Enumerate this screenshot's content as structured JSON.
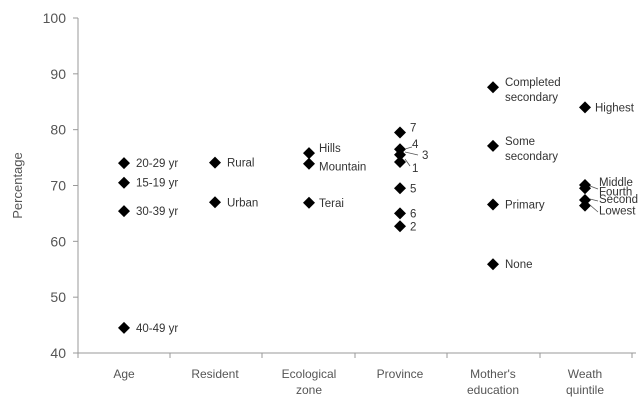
{
  "chart_data": {
    "type": "scatter",
    "title": "",
    "ylabel": "Percentage",
    "xlabel": "",
    "ylim": [
      40,
      100
    ],
    "yticks": [
      40,
      50,
      60,
      70,
      80,
      90,
      100
    ],
    "grid": false,
    "marker": "diamond",
    "categories": [
      {
        "label_lines": [
          "Age"
        ]
      },
      {
        "label_lines": [
          "Resident"
        ]
      },
      {
        "label_lines": [
          "Ecological",
          "zone"
        ]
      },
      {
        "label_lines": [
          "Province"
        ]
      },
      {
        "label_lines": [
          "Mother's",
          "education"
        ]
      },
      {
        "label_lines": [
          "Weath",
          "quintile"
        ]
      }
    ],
    "points": [
      {
        "category": 0,
        "value": 74.0,
        "label_lines": [
          "20-29 yr"
        ]
      },
      {
        "category": 0,
        "value": 70.5,
        "label_lines": [
          "15-19 yr"
        ]
      },
      {
        "category": 0,
        "value": 65.4,
        "label_lines": [
          "30-39 yr"
        ]
      },
      {
        "category": 0,
        "value": 44.5,
        "label_lines": [
          "40-49 yr"
        ]
      },
      {
        "category": 1,
        "value": 74.1,
        "label_lines": [
          "Rural"
        ]
      },
      {
        "category": 1,
        "value": 67.0,
        "label_lines": [
          "Urban"
        ]
      },
      {
        "category": 2,
        "value": 75.8,
        "label_lines": [
          "Hills"
        ]
      },
      {
        "category": 2,
        "value": 73.9,
        "label_lines": [
          "Mountain"
        ]
      },
      {
        "category": 2,
        "value": 66.9,
        "label_lines": [
          "Terai"
        ]
      },
      {
        "category": 3,
        "value": 79.5,
        "label_lines": [
          "7"
        ]
      },
      {
        "category": 3,
        "value": 76.5,
        "label_lines": [
          "4"
        ]
      },
      {
        "category": 3,
        "value": 75.5,
        "label_lines": [
          "3"
        ]
      },
      {
        "category": 3,
        "value": 74.2,
        "label_lines": [
          "1"
        ]
      },
      {
        "category": 3,
        "value": 69.5,
        "label_lines": [
          "5"
        ]
      },
      {
        "category": 3,
        "value": 65.0,
        "label_lines": [
          "6"
        ]
      },
      {
        "category": 3,
        "value": 62.7,
        "label_lines": [
          "2"
        ]
      },
      {
        "category": 4,
        "value": 87.6,
        "label_lines": [
          "Completed",
          "secondary"
        ]
      },
      {
        "category": 4,
        "value": 77.1,
        "label_lines": [
          "Some",
          "secondary"
        ]
      },
      {
        "category": 4,
        "value": 66.6,
        "label_lines": [
          "Primary"
        ]
      },
      {
        "category": 4,
        "value": 55.9,
        "label_lines": [
          "None"
        ]
      },
      {
        "category": 5,
        "value": 84.0,
        "label_lines": [
          "Highest"
        ]
      },
      {
        "category": 5,
        "value": 70.1,
        "label_lines": [
          "Middle"
        ]
      },
      {
        "category": 5,
        "value": 69.5,
        "label_lines": [
          "Fourth"
        ]
      },
      {
        "category": 5,
        "value": 67.4,
        "label_lines": [
          "Second"
        ]
      },
      {
        "category": 5,
        "value": 66.4,
        "label_lines": [
          "Lowest"
        ]
      }
    ]
  }
}
